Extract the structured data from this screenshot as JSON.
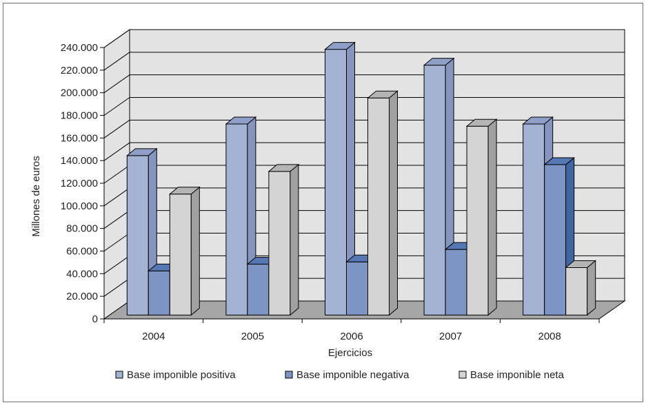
{
  "chart_data": {
    "type": "bar",
    "title": "",
    "xlabel": "Ejercicios",
    "ylabel": "Millones de euros",
    "categories": [
      "2004",
      "2005",
      "2006",
      "2007",
      "2008"
    ],
    "series": [
      {
        "name": "Base imponible positiva",
        "values": [
          141000,
          169000,
          235000,
          221000,
          169000
        ],
        "color": "#a4b3d4",
        "side_color": "#8595bd",
        "top_color": "#8f9fc8"
      },
      {
        "name": "Base imponible negativa",
        "values": [
          39000,
          45000,
          47000,
          58000,
          133000
        ],
        "color": "#7d95c3",
        "side_color": "#3f66a3",
        "top_color": "#5577b3"
      },
      {
        "name": "Base imponible neta",
        "values": [
          107000,
          127000,
          192000,
          167000,
          42000
        ],
        "color": "#d4d4d4",
        "side_color": "#a0a0a0",
        "top_color": "#b4b4b4"
      }
    ],
    "ylim": [
      0,
      240000
    ],
    "yticks": [
      "0",
      "20.000",
      "40.000",
      "60.000",
      "80.000",
      "100.000",
      "120.000",
      "140.000",
      "160.000",
      "180.000",
      "200.000",
      "220.000",
      "240.000"
    ],
    "grid": true,
    "legend_position": "bottom",
    "wall_color": "#e3e3e3",
    "floor_color": "#a6a6a6"
  }
}
